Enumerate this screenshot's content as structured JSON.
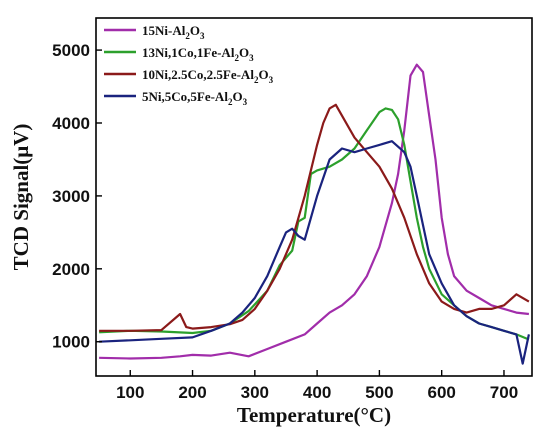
{
  "chart_data": {
    "type": "line",
    "xlabel": "Temperature(°C)",
    "ylabel": "TCD Signal(μV)",
    "xlim": [
      45,
      745
    ],
    "ylim": [
      530,
      5440
    ],
    "xticks": [
      "100",
      "200",
      "300",
      "400",
      "500",
      "600",
      "700"
    ],
    "xtick_values": [
      100,
      200,
      300,
      400,
      500,
      600,
      700
    ],
    "yticks": [
      "1000",
      "2000",
      "3000",
      "4000",
      "5000"
    ],
    "ytick_values": [
      1000,
      2000,
      3000,
      4000,
      5000
    ],
    "grid": false,
    "legend_position": "top-left",
    "series": [
      {
        "name_parts": [
          "15Ni-Al",
          "2",
          "O",
          "3",
          ""
        ],
        "color": "#A12DAA",
        "x": [
          50,
          100,
          150,
          180,
          200,
          230,
          260,
          290,
          320,
          350,
          380,
          400,
          420,
          440,
          460,
          480,
          500,
          520,
          530,
          540,
          550,
          560,
          570,
          580,
          590,
          600,
          610,
          620,
          640,
          660,
          680,
          700,
          720,
          740
        ],
        "y": [
          780,
          770,
          780,
          800,
          820,
          810,
          850,
          800,
          900,
          1000,
          1100,
          1250,
          1400,
          1500,
          1650,
          1900,
          2300,
          2900,
          3300,
          3900,
          4650,
          4800,
          4700,
          4100,
          3500,
          2700,
          2200,
          1900,
          1700,
          1600,
          1500,
          1450,
          1400,
          1380
        ]
      },
      {
        "name_parts": [
          "13Ni,1Co,1Fe-Al",
          "2",
          "O",
          "3",
          ""
        ],
        "color": "#2CA02C",
        "x": [
          50,
          100,
          150,
          200,
          230,
          260,
          290,
          320,
          340,
          360,
          370,
          380,
          390,
          400,
          420,
          440,
          460,
          480,
          500,
          510,
          520,
          530,
          540,
          550,
          560,
          570,
          580,
          600,
          620,
          640,
          660,
          680,
          700,
          720,
          740
        ],
        "y": [
          1130,
          1150,
          1140,
          1120,
          1150,
          1250,
          1420,
          1700,
          2050,
          2250,
          2650,
          2700,
          3300,
          3350,
          3400,
          3500,
          3650,
          3900,
          4150,
          4200,
          4180,
          4050,
          3700,
          3200,
          2700,
          2300,
          2000,
          1650,
          1500,
          1350,
          1250,
          1200,
          1150,
          1100,
          1030
        ]
      },
      {
        "name_parts": [
          "10Ni,2.5Co,2.5Fe-Al",
          "2",
          "O",
          "3",
          ""
        ],
        "color": "#8B1A1A",
        "x": [
          50,
          100,
          150,
          180,
          190,
          200,
          230,
          260,
          280,
          300,
          320,
          340,
          360,
          380,
          400,
          410,
          420,
          430,
          440,
          460,
          480,
          500,
          520,
          540,
          560,
          580,
          600,
          620,
          640,
          660,
          680,
          700,
          720,
          740
        ],
        "y": [
          1150,
          1150,
          1160,
          1380,
          1200,
          1180,
          1200,
          1240,
          1300,
          1450,
          1700,
          2000,
          2400,
          3000,
          3700,
          4000,
          4200,
          4250,
          4100,
          3800,
          3600,
          3400,
          3100,
          2700,
          2200,
          1800,
          1550,
          1450,
          1400,
          1450,
          1450,
          1500,
          1650,
          1550
        ]
      },
      {
        "name_parts": [
          "5Ni,5Co,5Fe-Al",
          "2",
          "O",
          "3",
          ""
        ],
        "color": "#1A237E",
        "x": [
          50,
          100,
          150,
          200,
          230,
          260,
          280,
          300,
          320,
          340,
          350,
          360,
          370,
          380,
          400,
          420,
          440,
          460,
          480,
          500,
          520,
          540,
          550,
          560,
          570,
          580,
          600,
          620,
          640,
          660,
          680,
          700,
          720,
          730,
          740
        ],
        "y": [
          1000,
          1020,
          1040,
          1060,
          1150,
          1250,
          1400,
          1600,
          1900,
          2300,
          2500,
          2550,
          2450,
          2400,
          3000,
          3500,
          3650,
          3600,
          3650,
          3700,
          3750,
          3600,
          3400,
          3000,
          2600,
          2200,
          1800,
          1500,
          1350,
          1250,
          1200,
          1150,
          1100,
          700,
          1100
        ]
      }
    ]
  }
}
